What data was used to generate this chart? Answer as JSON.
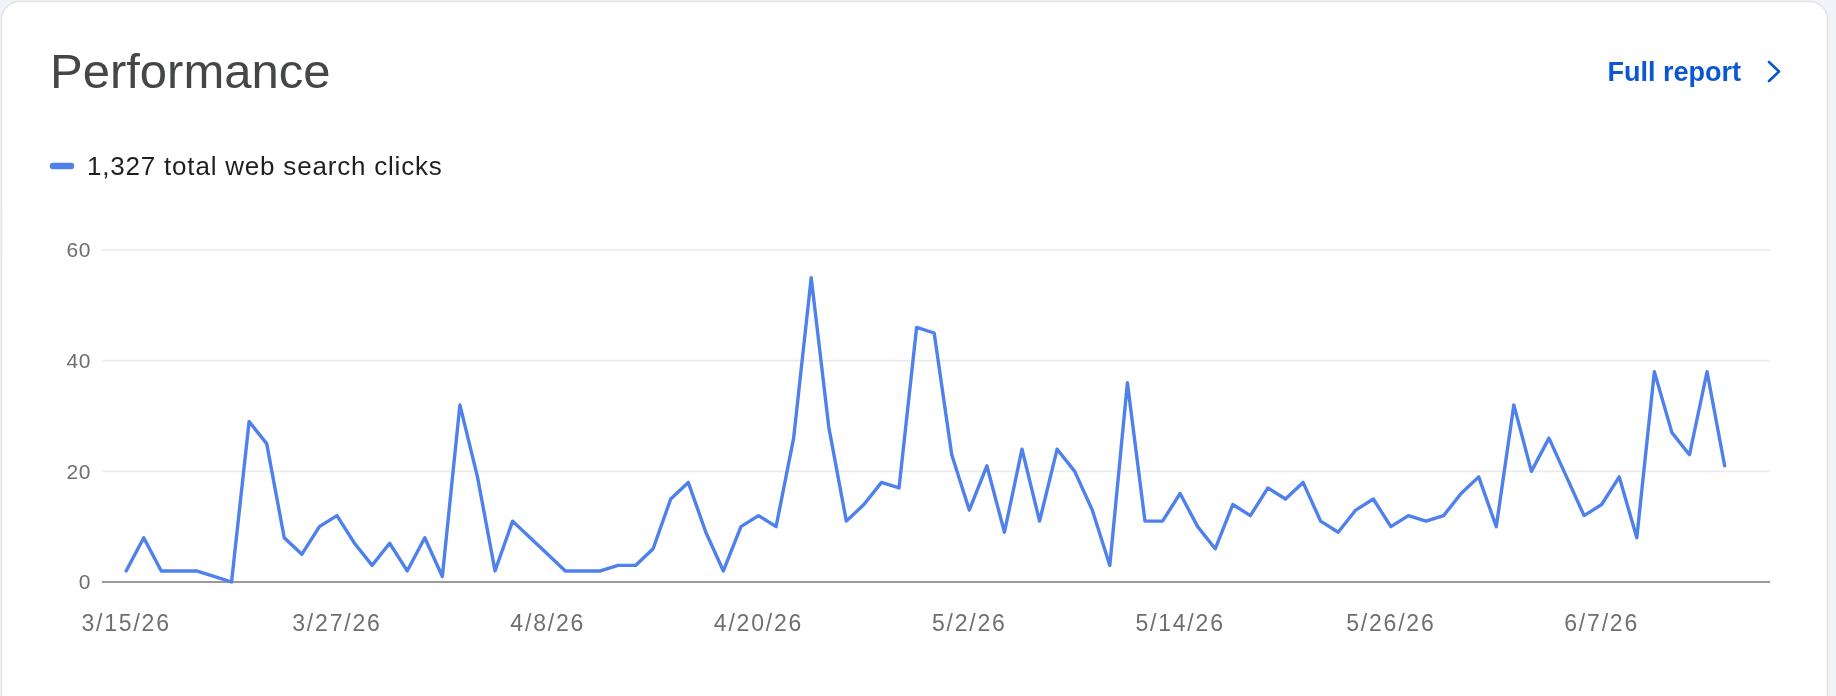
{
  "chart_data": {
    "type": "line",
    "title": "Performance",
    "annotations": [
      "Full report"
    ],
    "x": [
      "--03-15",
      "--03-16",
      "--03-17",
      "--03-18",
      "--03-19",
      "--03-20",
      "--03-21",
      "--03-22",
      "--03-23",
      "--03-24",
      "--03-25",
      "--03-26",
      "--03-27",
      "--03-28",
      "--03-29",
      "--03-30",
      "--03-31",
      "--04-01",
      "--04-02",
      "--04-03",
      "--04-04",
      "--04-05",
      "--04-06",
      "--04-07",
      "--04-08",
      "--04-09",
      "--04-10",
      "--04-11",
      "--04-12",
      "--04-13",
      "--04-14",
      "--04-15",
      "--04-16",
      "--04-17",
      "--04-18",
      "--04-19",
      "--04-20",
      "--04-21",
      "--04-22",
      "--04-23",
      "--04-24",
      "--04-25",
      "--04-26",
      "--04-27",
      "--04-28",
      "--04-29",
      "--04-30",
      "--05-01",
      "--05-02",
      "--05-03",
      "--05-04",
      "--05-05",
      "--05-06",
      "--05-07",
      "--05-08",
      "--05-09",
      "--05-10",
      "--05-11",
      "--05-12",
      "--05-13",
      "--05-14",
      "--05-15",
      "--05-16",
      "--05-17",
      "--05-18",
      "--05-19",
      "--05-20",
      "--05-21",
      "--05-22",
      "--05-23",
      "--05-24",
      "--05-25",
      "--05-26",
      "--05-27",
      "--05-28",
      "--05-29",
      "--05-30",
      "--05-31",
      "--06-01",
      "--06-02",
      "--06-03",
      "--06-04",
      "--06-05",
      "--06-06",
      "--06-07",
      "--06-08",
      "--06-09",
      "--06-10",
      "--06-11",
      "--06-12",
      "--06-13",
      "--06-14"
    ],
    "series": [
      {
        "name": "1,327 total web search clicks",
        "color": "#4f81ec",
        "values": [
          2,
          8,
          2,
          2,
          2,
          1,
          0,
          29,
          25,
          8,
          5,
          10,
          12,
          7,
          3,
          7,
          2,
          8,
          1,
          32,
          19,
          2,
          11,
          8,
          5,
          2,
          2,
          2,
          3,
          3,
          6,
          15,
          18,
          9,
          2,
          10,
          12,
          10,
          26,
          55,
          28,
          11,
          14,
          18,
          17,
          46,
          45,
          23,
          13,
          21,
          9,
          24,
          11,
          24,
          20,
          13,
          3,
          36,
          11,
          11,
          16,
          10,
          6,
          14,
          12,
          17,
          15,
          18,
          11,
          9,
          13,
          15,
          10,
          12,
          11,
          12,
          16,
          19,
          10,
          32,
          20,
          26,
          19,
          12,
          14,
          19,
          8,
          38,
          27,
          23,
          38,
          21
        ]
      }
    ],
    "xlim": [
      "--03-13T15:00",
      "--06-16T14:00"
    ],
    "xticks": [
      {
        "value": "--03-15",
        "label": "3/15/26"
      },
      {
        "value": "--03-27",
        "label": "3/27/26"
      },
      {
        "value": "--04-08",
        "label": "4/8/26"
      },
      {
        "value": "--04-20",
        "label": "4/20/26"
      },
      {
        "value": "--05-02",
        "label": "5/2/26"
      },
      {
        "value": "--05-14",
        "label": "5/14/26"
      },
      {
        "value": "--05-26",
        "label": "5/26/26"
      },
      {
        "value": "--06-07",
        "label": "6/7/26"
      }
    ],
    "ylim": [
      0,
      60
    ],
    "yticks": [
      0,
      20,
      40,
      60
    ],
    "grid": "y",
    "legend": "top left",
    "line_style": "solid"
  }
}
